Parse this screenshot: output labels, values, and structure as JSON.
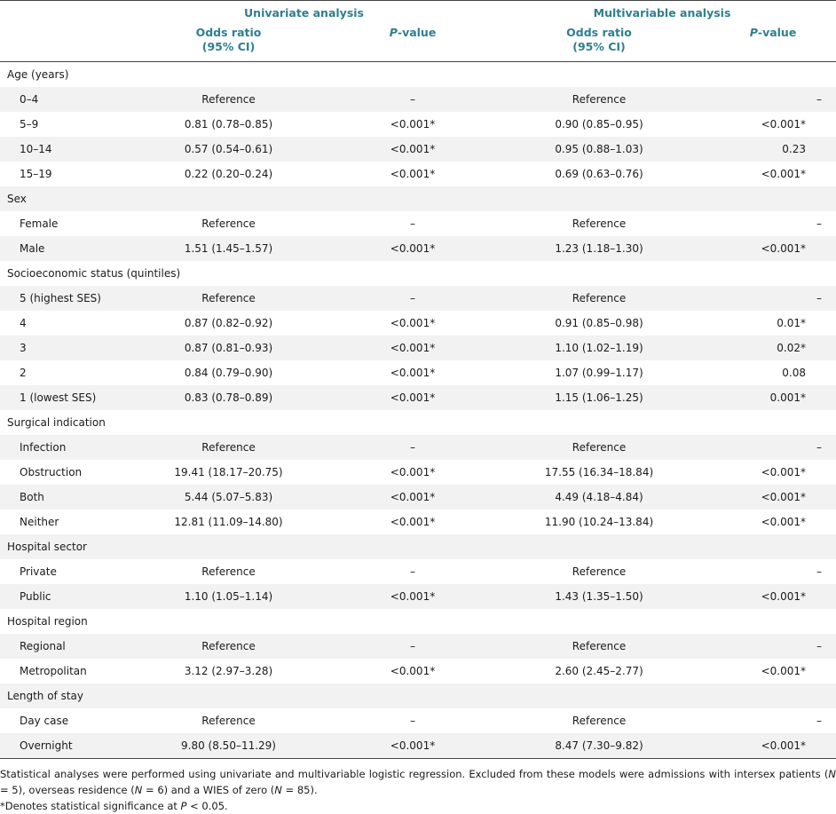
{
  "header": {
    "univariate": "Univariate analysis",
    "multivariable": "Multivariable analysis",
    "odds_ratio": "Odds ratio",
    "ci": "(95% CI)",
    "p_italic": "P",
    "p_rest": "-value"
  },
  "rows": [
    {
      "type": "category",
      "label": "Age (years)"
    },
    {
      "type": "item",
      "label": "0–4",
      "u_or": "Reference",
      "u_p": "–",
      "m_or": "Reference",
      "m_p": "–"
    },
    {
      "type": "item",
      "label": "5–9",
      "u_or": "0.81 (0.78–0.85)",
      "u_p": "<0.001*",
      "m_or": "0.90 (0.85–0.95)",
      "m_p": "<0.001*"
    },
    {
      "type": "item",
      "label": "10–14",
      "u_or": "0.57 (0.54–0.61)",
      "u_p": "<0.001*",
      "m_or": "0.95 (0.88–1.03)",
      "m_p": "0.23"
    },
    {
      "type": "item",
      "label": "15–19",
      "u_or": "0.22 (0.20–0.24)",
      "u_p": "<0.001*",
      "m_or": "0.69 (0.63–0.76)",
      "m_p": "<0.001*"
    },
    {
      "type": "category",
      "label": "Sex"
    },
    {
      "type": "item",
      "label": "Female",
      "u_or": "Reference",
      "u_p": "–",
      "m_or": "Reference",
      "m_p": "–"
    },
    {
      "type": "item",
      "label": "Male",
      "u_or": "1.51 (1.45–1.57)",
      "u_p": "<0.001*",
      "m_or": "1.23 (1.18–1.30)",
      "m_p": "<0.001*"
    },
    {
      "type": "category",
      "label": "Socioeconomic status (quintiles)"
    },
    {
      "type": "item",
      "label": "5 (highest SES)",
      "u_or": "Reference",
      "u_p": "–",
      "m_or": "Reference",
      "m_p": "–"
    },
    {
      "type": "item",
      "label": "4",
      "u_or": "0.87 (0.82–0.92)",
      "u_p": "<0.001*",
      "m_or": "0.91 (0.85–0.98)",
      "m_p": "0.01*"
    },
    {
      "type": "item",
      "label": "3",
      "u_or": "0.87 (0.81–0.93)",
      "u_p": "<0.001*",
      "m_or": "1.10 (1.02–1.19)",
      "m_p": "0.02*"
    },
    {
      "type": "item",
      "label": "2",
      "u_or": "0.84 (0.79–0.90)",
      "u_p": "<0.001*",
      "m_or": "1.07 (0.99–1.17)",
      "m_p": "0.08"
    },
    {
      "type": "item",
      "label": "1 (lowest SES)",
      "u_or": "0.83 (0.78–0.89)",
      "u_p": "<0.001*",
      "m_or": "1.15 (1.06–1.25)",
      "m_p": "0.001*"
    },
    {
      "type": "category",
      "label": "Surgical indication"
    },
    {
      "type": "item",
      "label": "Infection",
      "u_or": "Reference",
      "u_p": "–",
      "m_or": "Reference",
      "m_p": "–"
    },
    {
      "type": "item",
      "label": "Obstruction",
      "u_or": "19.41 (18.17–20.75)",
      "u_p": "<0.001*",
      "m_or": "17.55 (16.34–18.84)",
      "m_p": "<0.001*"
    },
    {
      "type": "item",
      "label": "Both",
      "u_or": "5.44 (5.07–5.83)",
      "u_p": "<0.001*",
      "m_or": "4.49 (4.18–4.84)",
      "m_p": "<0.001*"
    },
    {
      "type": "item",
      "label": "Neither",
      "u_or": "12.81 (11.09–14.80)",
      "u_p": "<0.001*",
      "m_or": "11.90 (10.24–13.84)",
      "m_p": "<0.001*"
    },
    {
      "type": "category",
      "label": "Hospital sector"
    },
    {
      "type": "item",
      "label": "Private",
      "u_or": "Reference",
      "u_p": "–",
      "m_or": "Reference",
      "m_p": "–"
    },
    {
      "type": "item",
      "label": "Public",
      "u_or": "1.10 (1.05–1.14)",
      "u_p": "<0.001*",
      "m_or": "1.43 (1.35–1.50)",
      "m_p": "<0.001*"
    },
    {
      "type": "category",
      "label": "Hospital region"
    },
    {
      "type": "item",
      "label": "Regional",
      "u_or": "Reference",
      "u_p": "–",
      "m_or": "Reference",
      "m_p": "–"
    },
    {
      "type": "item",
      "label": "Metropolitan",
      "u_or": "3.12 (2.97–3.28)",
      "u_p": "<0.001*",
      "m_or": "2.60 (2.45–2.77)",
      "m_p": "<0.001*"
    },
    {
      "type": "category",
      "label": "Length of stay"
    },
    {
      "type": "item",
      "label": "Day case",
      "u_or": "Reference",
      "u_p": "–",
      "m_or": "Reference",
      "m_p": "–"
    },
    {
      "type": "item",
      "label": "Overnight",
      "u_or": "9.80 (8.50–11.29)",
      "u_p": "<0.001*",
      "m_or": "8.47 (7.30–9.82)",
      "m_p": "<0.001*"
    }
  ],
  "footnote": {
    "part1": "Statistical analyses were performed using univariate and multivariable logistic regression. Excluded from these models were admissions with intersex patients (",
    "n": "N",
    "part2": " = 5), overseas residence (",
    "part3": " = 6) and a WIES of zero (",
    "part4": " = 85).",
    "sig_prefix": "*Denotes statistical significance at ",
    "sig_p": "P",
    "sig_suffix": " < 0.05."
  }
}
